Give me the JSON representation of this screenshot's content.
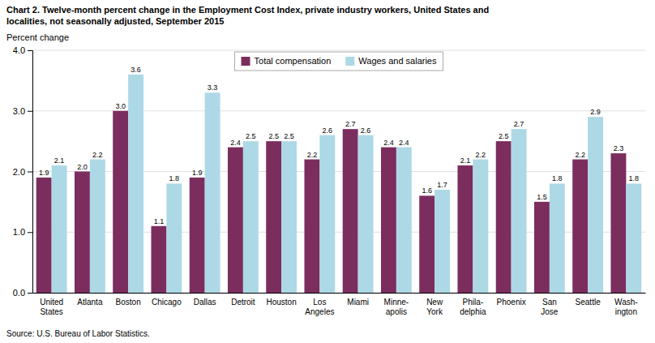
{
  "chart_data": {
    "type": "bar",
    "title": "Chart 2. Twelve-month percent change in the Employment Cost Index, private industry workers, United States and\nlocalities, not seasonally adjusted, September 2015",
    "y_label": "Percent change",
    "source": "Source: U.S. Bureau of Labor Statistics.",
    "categories": [
      "United\nStates",
      "Atlanta",
      "Boston",
      "Chicago",
      "Dallas",
      "Detroit",
      "Houston",
      "Los\nAngeles",
      "Miami",
      "Minne-\napolis",
      "New\nYork",
      "Phila-\ndelphia",
      "Phoenix",
      "San\nJose",
      "Seattle",
      "Wash-\nington"
    ],
    "series": [
      {
        "name": "Total compensation",
        "color": "#7B2D5E",
        "values": [
          1.9,
          2.0,
          3.0,
          1.1,
          1.9,
          2.4,
          2.5,
          2.2,
          2.7,
          2.4,
          1.6,
          2.1,
          2.5,
          1.5,
          2.2,
          2.3
        ],
        "value_labels": [
          "1.9",
          "2.0",
          "3.0",
          "1.1",
          "1.9",
          "2.4",
          "2.5",
          "2.2",
          "2.7",
          "2.4",
          "1.6",
          "2.1",
          "2.5",
          "1.5",
          "2.2",
          "2.3"
        ]
      },
      {
        "name": "Wages and salaries",
        "color": "#ADD8E6",
        "values": [
          2.1,
          2.2,
          3.6,
          1.8,
          3.3,
          2.5,
          2.5,
          2.6,
          2.6,
          2.4,
          1.7,
          2.2,
          2.7,
          1.8,
          2.9,
          1.8
        ],
        "value_labels": [
          "2.1",
          "2.2",
          "3.6",
          "1.8",
          "3.3",
          "2.5",
          "2.5",
          "2.6",
          "2.6",
          "2.4",
          "1.7",
          "2.2",
          "2.7",
          "1.8",
          "2.9",
          "1.8"
        ]
      }
    ],
    "ylim": [
      0.0,
      4.0
    ],
    "yticks": [
      {
        "value": 0,
        "label": "0.0"
      },
      {
        "value": 1,
        "label": "1.0"
      },
      {
        "value": 2,
        "label": "2.0"
      },
      {
        "value": 3,
        "label": "3.0"
      },
      {
        "value": 4,
        "label": "4.0"
      }
    ],
    "grid": true,
    "legend": "top",
    "data_labels": true
  }
}
